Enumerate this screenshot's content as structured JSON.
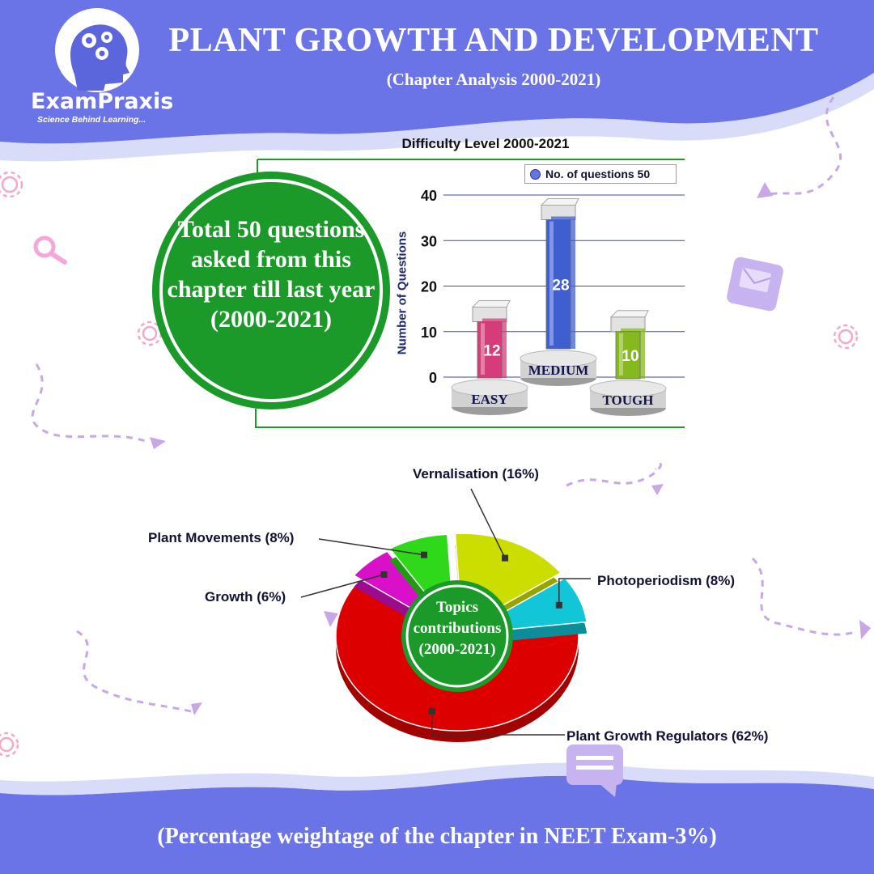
{
  "header": {
    "title": "PLANT GROWTH AND DEVELOPMENT",
    "subtitle": "(Chapter Analysis 2000-2021)"
  },
  "brand": {
    "name": "ExamPraxis",
    "tagline": "Science Behind Learning...",
    "icon": "head-gears-icon"
  },
  "summary_circle": {
    "text": "Total 50 questions asked from this chapter till last year (2000-2021)"
  },
  "footer": {
    "text": "(Percentage weightage of the chapter in NEET Exam-3%)"
  },
  "colors": {
    "header_bg": "#6b74e6",
    "circle_green": "#1b9a2a",
    "easy": "#d63c79",
    "medium": "#3f5fd1",
    "tough": "#86b820",
    "pgr": "#dd0000",
    "vernalisation": "#ccdd00",
    "photoperiodism": "#12c6d8",
    "movements": "#2fd81b",
    "growth": "#d811c8"
  },
  "chart_data": [
    {
      "type": "bar",
      "title": "Difficulty Level 2000-2021",
      "ylabel": "Number of Questions",
      "xlabel": "",
      "categories": [
        "EASY",
        "MEDIUM",
        "TOUGH"
      ],
      "series": [
        {
          "name": "No. of questions 50",
          "values": [
            12,
            28,
            10
          ]
        }
      ],
      "ylim": [
        0,
        40
      ],
      "yticks": [
        0,
        10,
        20,
        30,
        40
      ],
      "grid": true,
      "legend": "top-right"
    },
    {
      "type": "pie",
      "title": "",
      "center_label": "Topics contributions (2000-2021)",
      "slices": [
        {
          "label": "Plant Growth Regulators (62%)",
          "value": 62
        },
        {
          "label": "Growth (6%)",
          "value": 6
        },
        {
          "label": "Plant Movements (8%)",
          "value": 8
        },
        {
          "label": "Vernalisation (16%)",
          "value": 16
        },
        {
          "label": "Photoperiodism (8%)",
          "value": 8
        }
      ]
    }
  ]
}
